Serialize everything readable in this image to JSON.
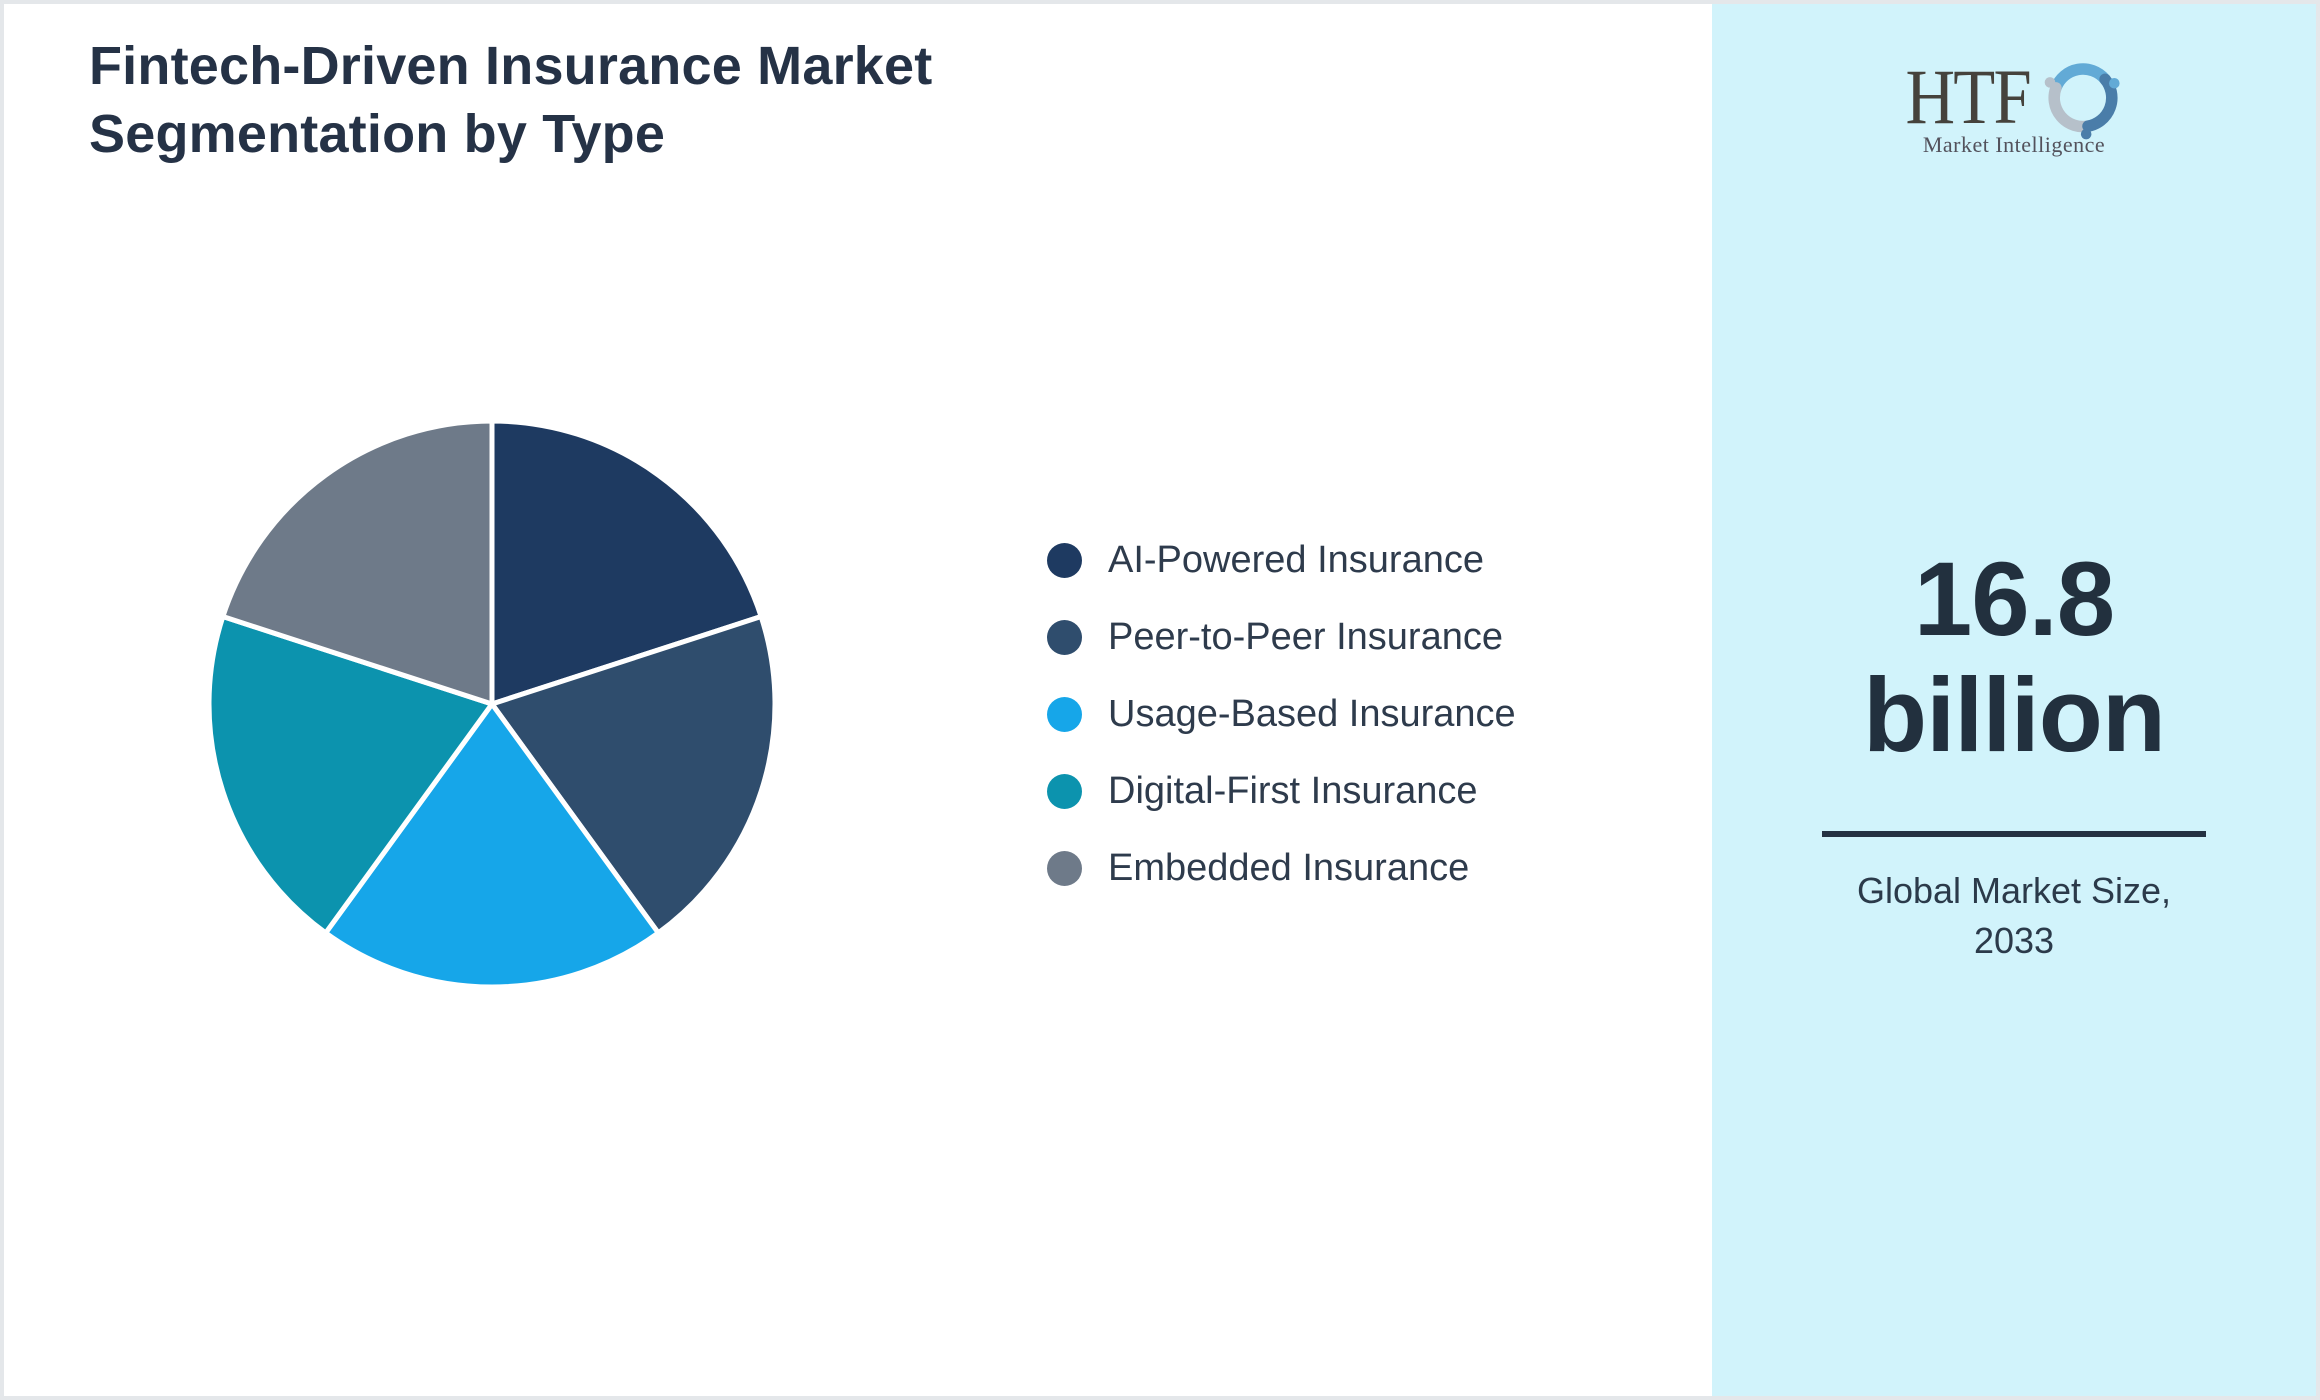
{
  "header": {
    "title_lines": [
      "Fintech-Driven Insurance Market",
      "Segmentation by Type"
    ]
  },
  "chart_data": {
    "type": "pie",
    "title": "Fintech-Driven Insurance Market Segmentation by Type",
    "labels": [
      "AI-Powered Insurance",
      "Peer-to-Peer Insurance",
      "Usage-Based Insurance",
      "Digital-First Insurance",
      "Embedded Insurance"
    ],
    "values": [
      20,
      20,
      20,
      20,
      20
    ],
    "colors": [
      "#1e3a61",
      "#2f4d6d",
      "#16a6e9",
      "#0c93ae",
      "#6e7a89"
    ],
    "start_angle_deg": 0,
    "clockwise": true,
    "slice_gap_color": "#ffffff",
    "legend_position": "right"
  },
  "sidebar": {
    "logo_brand": "HTF",
    "logo_tagline": "Market Intelligence",
    "value_line1": "16.8",
    "value_line2": "billion",
    "caption_line1": "Global Market Size,",
    "caption_line2": "2033",
    "background": "#d1f3fb"
  },
  "colors": {
    "title_text": "#253246",
    "legend_text": "#2e3b4c",
    "value_text": "#22303e",
    "divider": "#243142",
    "page_border": "#e4e7ea",
    "logo_dolphin_blue": "#62aad6",
    "logo_dolphin_gray": "#b6c0ca",
    "logo_dolphin_steel": "#4a7da9"
  }
}
